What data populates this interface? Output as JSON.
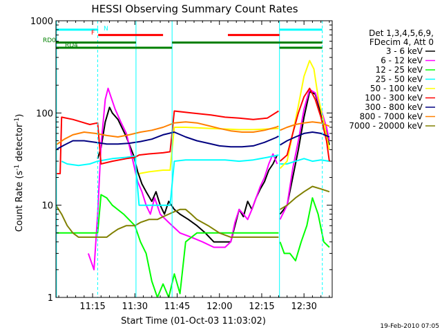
{
  "chart_data": {
    "type": "line",
    "title": "HESSI Observing Summary Count Rates",
    "xlabel": "Start Time (01-Oct-03 11:03:02)",
    "ylabel": "Count Rate (s",
    "ylabel_sup1": "-1",
    "ylabel_mid": " detector",
    "ylabel_sup2": "-1",
    "ylabel_end": ")",
    "yscale": "log",
    "ylim": [
      1,
      1000
    ],
    "xlim": [
      0,
      98
    ],
    "x_tick_values": [
      13,
      28,
      43,
      58,
      73,
      88
    ],
    "x_tick_labels": [
      "11:15",
      "11:30",
      "11:45",
      "12:00",
      "12:15",
      "12:30"
    ],
    "y_tick_values": [
      1,
      10,
      100,
      1000
    ],
    "y_tick_labels": [
      "1",
      "10",
      "100",
      "1000"
    ],
    "legend_header": [
      "Det 1,3,4,5,6,9,",
      "FDecim 4, Att 0"
    ],
    "series": [
      {
        "name": "3 - 6 keV",
        "color": "#000000",
        "x": [
          0,
          9,
          14.8,
          16,
          17.5,
          19,
          20,
          22,
          25,
          27.5,
          29,
          30.5,
          32,
          34,
          35.5,
          37,
          38.5,
          40,
          42,
          44,
          47,
          50,
          53,
          56,
          59,
          62,
          63.5,
          65,
          66.5,
          68,
          69.5,
          71,
          72.5,
          74,
          75.5,
          77,
          78.5,
          79
        ],
        "y": [
          null,
          null,
          32,
          42,
          80,
          115,
          100,
          85,
          55,
          35,
          23,
          17,
          14,
          11,
          14,
          10,
          8,
          11,
          9,
          8,
          7,
          6,
          5,
          4,
          4,
          4,
          6,
          9,
          7.5,
          11,
          9,
          12,
          15,
          18,
          24,
          28,
          35,
          null
        ]
      },
      {
        "name": "6 - 12 keV",
        "color": "#ff00ff",
        "x": [
          0,
          9,
          11.5,
          13.5,
          14.8,
          16,
          17.5,
          18.5,
          19.5,
          21,
          23,
          25,
          27,
          29,
          30.5,
          32,
          33.5,
          35,
          37,
          40,
          44,
          48,
          52,
          56,
          60,
          62,
          63.5,
          65,
          66.5,
          68,
          69.5,
          71,
          72.5,
          74,
          75.5,
          77,
          78.5,
          79
        ],
        "y": [
          null,
          null,
          3,
          2,
          8,
          45,
          140,
          185,
          150,
          110,
          80,
          60,
          33,
          18,
          14,
          10,
          8,
          12,
          8,
          6.5,
          5,
          4.5,
          4,
          3.5,
          3.5,
          4,
          6.5,
          9,
          8,
          7,
          9,
          12,
          16,
          20,
          28,
          36,
          28,
          null
        ]
      },
      {
        "name": "12 - 25 keV",
        "color": "#00ff00",
        "x": [
          0,
          9,
          12,
          14.8,
          16,
          18,
          20,
          24,
          28,
          30,
          32,
          34,
          36,
          38,
          40,
          42,
          44,
          46,
          50,
          55,
          60,
          65,
          70,
          75,
          79
        ],
        "y": [
          5,
          5,
          5,
          5,
          13,
          12,
          10,
          8,
          6,
          4,
          3,
          1.5,
          1,
          1.4,
          1,
          1.8,
          1.1,
          4,
          5,
          5,
          5,
          5,
          5,
          5,
          5
        ]
      },
      {
        "name": "25 - 50 keV",
        "color": "#00ffff",
        "x": [
          0,
          2,
          4,
          8,
          12,
          14.8,
          20,
          25,
          28,
          29.5,
          33,
          38,
          40.5,
          42,
          46,
          50,
          55,
          60,
          65,
          70,
          75,
          79
        ],
        "y": [
          null,
          30,
          28,
          27,
          28,
          30,
          32,
          33,
          34,
          10,
          10,
          10,
          10,
          30,
          31,
          31,
          31,
          31,
          30,
          31,
          33,
          35
        ]
      },
      {
        "name": "50 - 100 keV",
        "color": "#ffff00",
        "x": [
          0,
          28,
          29.5,
          33,
          38,
          40.5,
          42,
          46,
          50,
          55,
          60,
          65,
          70,
          75,
          79
        ],
        "y": [
          null,
          null,
          22,
          23,
          24,
          24,
          70,
          70,
          69,
          68,
          67,
          66,
          66,
          67,
          68
        ]
      },
      {
        "name": "100 - 300 keV",
        "color": "#ff0000",
        "x": [
          0,
          1.5,
          2,
          6,
          9,
          12,
          14.8,
          16,
          20,
          25,
          28,
          29.5,
          33,
          38,
          40.5,
          42,
          48,
          55,
          60,
          65,
          70,
          75,
          79
        ],
        "y": [
          22,
          22,
          90,
          85,
          80,
          75,
          78,
          28,
          30,
          32,
          33,
          35,
          36,
          37,
          38,
          105,
          100,
          95,
          90,
          88,
          85,
          88,
          105
        ]
      },
      {
        "name": "300 - 800 keV",
        "color": "#000080",
        "x": [
          0,
          3,
          6,
          10,
          14,
          18,
          22,
          26,
          30,
          34,
          38,
          42,
          46,
          50,
          54,
          58,
          62,
          66,
          70,
          74,
          78,
          79
        ],
        "y": [
          40,
          45,
          50,
          50,
          48,
          46,
          46,
          47,
          49,
          52,
          58,
          62,
          55,
          50,
          47,
          44,
          43,
          43,
          44,
          48,
          54,
          56
        ]
      },
      {
        "name": "800 - 7000 keV",
        "color": "#ff8000",
        "x": [
          0,
          3,
          6,
          10,
          14,
          18,
          22,
          26,
          30,
          34,
          38,
          42,
          46,
          50,
          54,
          58,
          62,
          66,
          70,
          74,
          78,
          79
        ],
        "y": [
          45,
          52,
          58,
          62,
          60,
          57,
          55,
          58,
          62,
          65,
          70,
          78,
          80,
          78,
          73,
          68,
          64,
          62,
          62,
          65,
          70,
          72
        ]
      },
      {
        "name": "7000 - 20000 keV",
        "color": "#808000",
        "x": [
          0,
          2,
          4,
          6,
          8,
          10,
          14,
          18,
          20,
          22,
          25,
          28,
          30,
          33,
          36,
          38,
          40,
          42,
          44,
          46,
          48,
          50,
          54,
          58,
          62,
          66,
          70,
          74,
          78,
          79
        ],
        "y": [
          10,
          8,
          6,
          5,
          4.5,
          4.5,
          4.5,
          4.5,
          5,
          5.5,
          6,
          6,
          6.5,
          7,
          7,
          7.5,
          8,
          8.5,
          9,
          9,
          8,
          7,
          6,
          5,
          4.5,
          4.5,
          4.5,
          4.5,
          4.5,
          4.5
        ]
      }
    ],
    "window2_series": [
      {
        "name": "3 - 6 keV",
        "x": [
          79.5,
          82,
          84,
          86,
          88,
          90,
          92,
          94,
          96,
          97
        ],
        "y": [
          8,
          10,
          20,
          40,
          90,
          170,
          160,
          100,
          60,
          45
        ]
      },
      {
        "name": "6 - 12 keV",
        "x": [
          79.5,
          82,
          84,
          86,
          88,
          90,
          92,
          94,
          96,
          97
        ],
        "y": [
          7,
          10,
          25,
          50,
          110,
          180,
          165,
          110,
          70,
          50
        ]
      },
      {
        "name": "12 - 25 keV",
        "x": [
          79.5,
          81,
          83,
          85,
          87,
          89,
          91,
          93,
          95,
          97
        ],
        "y": [
          4,
          3,
          3,
          2.5,
          4,
          6,
          12,
          8,
          4,
          3.5
        ]
      },
      {
        "name": "25 - 50 keV",
        "x": [
          79.5,
          82,
          85,
          88,
          91,
          94,
          97
        ],
        "y": [
          28,
          28,
          30,
          32,
          30,
          31,
          30
        ]
      },
      {
        "name": "50 - 100 keV",
        "x": [
          79.5,
          82,
          84,
          86,
          88,
          90,
          91.5,
          93,
          95,
          97
        ],
        "y": [
          25,
          30,
          60,
          120,
          250,
          370,
          300,
          150,
          80,
          40
        ]
      },
      {
        "name": "100 - 300 keV",
        "x": [
          79.5,
          82,
          84,
          86,
          88,
          90,
          92,
          94,
          96,
          97
        ],
        "y": [
          30,
          35,
          60,
          100,
          150,
          185,
          140,
          90,
          50,
          30
        ]
      },
      {
        "name": "300 - 800 keV",
        "x": [
          79.5,
          82,
          85,
          88,
          91,
          94,
          97
        ],
        "y": [
          45,
          50,
          55,
          60,
          62,
          60,
          55
        ]
      },
      {
        "name": "800 - 7000 keV",
        "x": [
          79.5,
          82,
          85,
          88,
          91,
          94,
          97
        ],
        "y": [
          65,
          70,
          75,
          78,
          80,
          78,
          72
        ]
      },
      {
        "name": "7000 - 20000 keV",
        "x": [
          79.5,
          82,
          85,
          88,
          91,
          94,
          97
        ],
        "y": [
          9,
          10,
          12,
          14,
          16,
          15,
          14
        ]
      }
    ],
    "vertical_lines": [
      {
        "x": 14.8,
        "color": "#00ffff",
        "style": "dashed"
      },
      {
        "x": 94.5,
        "color": "#00ffff",
        "style": "dashed"
      },
      {
        "x": 0.2,
        "color": "#00ffff",
        "style": "solid"
      },
      {
        "x": 79.3,
        "color": "#00ffff",
        "style": "solid"
      },
      {
        "x": 28.4,
        "color": "#00ffff",
        "style": "solid"
      },
      {
        "x": 41.2,
        "color": "#00ffff",
        "style": "solid"
      }
    ],
    "flag_bars": [
      {
        "label": "N",
        "color": "#00ffff",
        "segments": [
          [
            0,
            15
          ],
          [
            79.3,
            94.5
          ]
        ],
        "level": 800
      },
      {
        "label": "F",
        "color": "#ff0000",
        "segments": [
          [
            15,
            38
          ],
          [
            61,
            79.3
          ]
        ],
        "level": 700
      },
      {
        "label": "RD0",
        "color": "#008000",
        "segments": [
          [
            0,
            28.4
          ],
          [
            41.2,
            79.3
          ],
          [
            79.3,
            94.5
          ]
        ],
        "level": 580
      },
      {
        "label": "RD4",
        "color": "#008000",
        "segments": [
          [
            0,
            28.4
          ],
          [
            28.4,
            41.2
          ],
          [
            79.3,
            94.5
          ]
        ],
        "level": 510
      }
    ],
    "flag_labels": {
      "n": "N",
      "f": "F",
      "rd0": "RD0",
      "rd4": "RD4"
    },
    "timestamp": "19-Feb-2010 07:05"
  }
}
